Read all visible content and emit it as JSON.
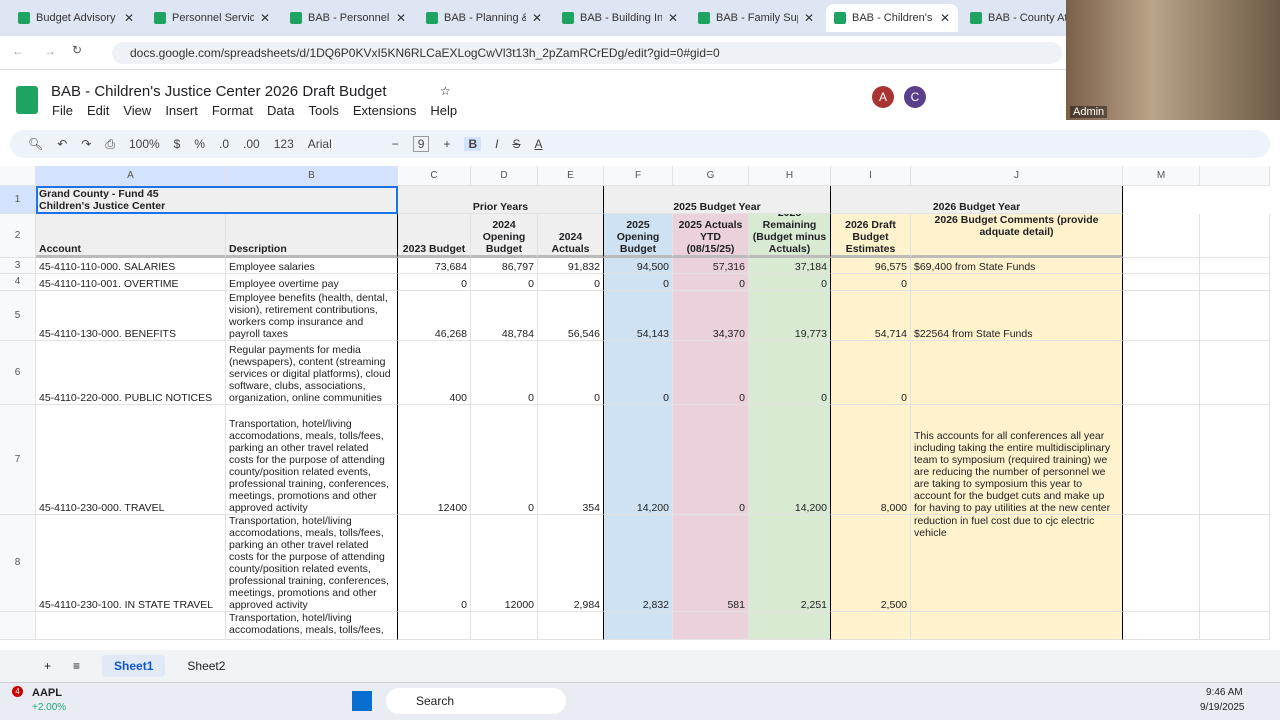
{
  "browser": {
    "tabs": [
      "Budget Advisory",
      "Personnel Servic",
      "BAB - Personnel",
      "BAB - Planning &",
      "BAB - Building In",
      "BAB - Family Sup",
      "BAB - Children's",
      "BAB - County Att"
    ],
    "active_tab": 6,
    "url": "docs.google.com/spreadsheets/d/1DQ6P0KVxI5KN6RLCaEXLogCwVl3t13h_2pZamRCrEDg/edit?gid=0#gid=0"
  },
  "video": {
    "label": "Admin"
  },
  "doc": {
    "title": "BAB - Children's Justice Center 2026 Draft Budget",
    "menu": [
      "File",
      "Edit",
      "View",
      "Insert",
      "Format",
      "Data",
      "Tools",
      "Extensions",
      "Help"
    ],
    "avatars": [
      "A",
      "C"
    ]
  },
  "toolbar": {
    "zoom": "100%",
    "currency": "$",
    "percent": "%",
    "dec_down": ".0",
    "dec_up": ".00",
    "format": "123",
    "font": "Arial",
    "font_size": "9"
  },
  "columns": [
    "",
    "A",
    "B",
    "C",
    "D",
    "E",
    "F",
    "G",
    "H",
    "I",
    "J",
    "M"
  ],
  "rows": [
    {
      "n": "1",
      "cells": [
        [
          "Grand County - Fund 45\nChildren's Justice Center",
          "",
          "",
          ""
        ],
        [
          "Prior Years"
        ],
        [
          "2025 Budget Year"
        ],
        [
          "2026 Budget Year"
        ]
      ]
    },
    {
      "n": "2",
      "cells": [
        "Account",
        "Description",
        "2023 Budget",
        "2024 Opening Budget",
        "2024 Actuals",
        "2025 Opening Budget",
        "2025 Actuals YTD (08/15/25)",
        "2025 Remaining (Budget minus Actuals)",
        "2026 Draft Budget Estimates",
        "2026 Budget Comments (provide adquate detail)"
      ]
    },
    {
      "n": "3",
      "cells": [
        "45-4110-110-000. SALARIES",
        "Employee salaries",
        "73,684",
        "86,797",
        "91,832",
        "94,500",
        "57,316",
        "37,184",
        "96,575",
        "$69,400 from State Funds"
      ]
    },
    {
      "n": "4",
      "cells": [
        "45-4110-110-001. OVERTIME",
        "Employee overtime pay",
        "0",
        "0",
        "0",
        "0",
        "0",
        "0",
        "0",
        ""
      ]
    },
    {
      "n": "5",
      "cells": [
        "45-4110-130-000. BENEFITS",
        "Employee benefits (health, dental, vision), retirement contributions, workers comp insurance and payroll taxes",
        "46,268",
        "48,784",
        "56,546",
        "54,143",
        "34,370",
        "19,773",
        "54,714",
        "$22564 from State Funds"
      ]
    },
    {
      "n": "6",
      "cells": [
        "45-4110-220-000. PUBLIC NOTICES",
        "Regular payments for media (newspapers), content (streaming services or digital platforms), cloud software, clubs, associations, organization, online communities",
        "400",
        "0",
        "0",
        "0",
        "0",
        "0",
        "0",
        ""
      ]
    },
    {
      "n": "7",
      "cells": [
        "45-4110-230-000. TRAVEL",
        "Transportation, hotel/living accomodations, meals, tolls/fees, parking an other travel related costs for the purpose of attending county/position related events, professional training, conferences, meetings, promotions and other approved activity",
        "12400",
        "0",
        "354",
        "14,200",
        "0",
        "14,200",
        "8,000",
        "This accounts for all conferences all year including taking the entire multidisciplinary team to symposium (required training) we are reducing the number of personnel we are taking to symposium this year to account for the budget cuts and make up for having to pay utilities at the new center"
      ]
    },
    {
      "n": "8",
      "cells": [
        "45-4110-230-100. IN STATE TRAVEL",
        "Transportation, hotel/living accomodations, meals, tolls/fees, parking an other travel related costs for the purpose of attending county/position related events, professional training, conferences, meetings, promotions and other approved activity",
        "0",
        "12000",
        "2,984",
        "2,832",
        "581",
        "2,251",
        "2,500",
        "reduction in fuel cost due to cjc electric vehicle"
      ]
    },
    {
      "n": "",
      "cells": [
        "",
        "Transportation, hotel/living accomodations, meals, tolls/fees,",
        "",
        "",
        "",
        "",
        "",
        "",
        "",
        ""
      ]
    }
  ],
  "sheets": [
    "Sheet1",
    "Sheet2"
  ],
  "colors": {
    "blue": "#cfe2f3",
    "pink": "#ead1dc",
    "green": "#d9ead3",
    "yellow": "#fff2cc",
    "header_gray": "#efefef"
  },
  "taskbar": {
    "stock": "AAPL",
    "change": "+2.00%",
    "badge": "4",
    "search": "Search",
    "time": "9:46 AM",
    "date": "9/19/2025"
  }
}
